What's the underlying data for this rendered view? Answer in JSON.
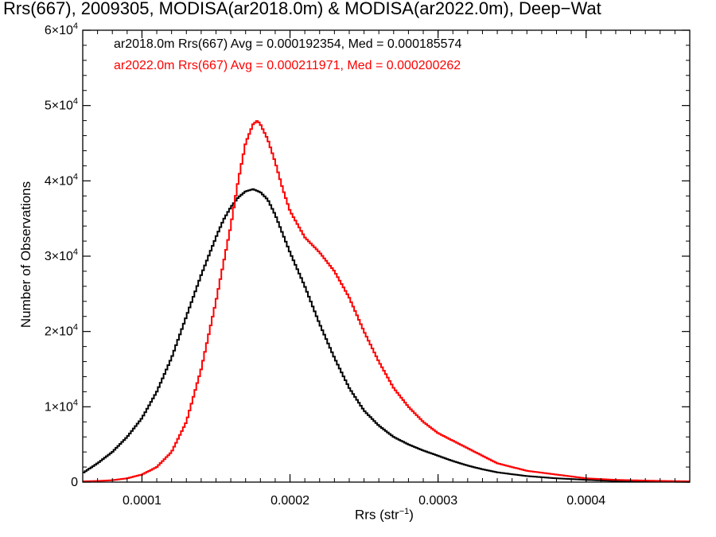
{
  "chart_data": {
    "type": "line",
    "title": "Rrs(667), 2009305, MODISA(ar2018.0m) & MODISA(ar2022.0m), Deep−Wat",
    "xlabel": "Rrs (str",
    "xlabel_sup": "−1",
    "xlabel_suffix": ")",
    "ylabel": "Number of Observations",
    "xlim": [
      6e-05,
      0.00047
    ],
    "ylim": [
      0,
      60000
    ],
    "x_ticks": [
      {
        "value": 0.0001,
        "label": "0.0001"
      },
      {
        "value": 0.0002,
        "label": "0.0002"
      },
      {
        "value": 0.0003,
        "label": "0.0003"
      },
      {
        "value": 0.0004,
        "label": "0.0004"
      }
    ],
    "y_ticks": [
      {
        "value": 0,
        "label": "0",
        "sup": ""
      },
      {
        "value": 10000,
        "label": "1×10",
        "sup": "4"
      },
      {
        "value": 20000,
        "label": "2×10",
        "sup": "4"
      },
      {
        "value": 30000,
        "label": "3×10",
        "sup": "4"
      },
      {
        "value": 40000,
        "label": "4×10",
        "sup": "4"
      },
      {
        "value": 50000,
        "label": "5×10",
        "sup": "4"
      },
      {
        "value": 60000,
        "label": "6×10",
        "sup": "4"
      }
    ],
    "grid": false,
    "legend_placement": "top-left",
    "series": [
      {
        "name": "ar2018.0m Rrs(667) Avg = 0.000192354, Med = 0.000185574",
        "color": "#000000",
        "x": [
          6e-05,
          7e-05,
          8e-05,
          9e-05,
          0.0001,
          0.00011,
          0.00012,
          0.00013,
          0.00014,
          0.00015,
          0.000155,
          0.00016,
          0.000165,
          0.00017,
          0.000175,
          0.00018,
          0.000185,
          0.00019,
          0.0002,
          0.00021,
          0.00022,
          0.00023,
          0.00024,
          0.00025,
          0.00026,
          0.00027,
          0.00028,
          0.00029,
          0.0003,
          0.00031,
          0.00032,
          0.00033,
          0.00034,
          0.00036,
          0.00038,
          0.0004,
          0.00042,
          0.00044,
          0.00047
        ],
        "y": [
          1200,
          2500,
          4000,
          6000,
          8500,
          12000,
          16500,
          22000,
          27500,
          32500,
          34800,
          36500,
          37800,
          38600,
          38900,
          38500,
          37500,
          35500,
          30500,
          26000,
          21000,
          16500,
          12500,
          9500,
          7500,
          6000,
          5000,
          4200,
          3500,
          2800,
          2200,
          1700,
          1300,
          800,
          500,
          300,
          150,
          80,
          30
        ]
      },
      {
        "name": "ar2022.0m Rrs(667) Avg = 0.000211971, Med = 0.000200262",
        "color": "#ff0000",
        "x": [
          6e-05,
          7e-05,
          8e-05,
          9e-05,
          0.0001,
          0.00011,
          0.00012,
          0.00013,
          0.00014,
          0.00015,
          0.00016,
          0.000165,
          0.00017,
          0.000175,
          0.000178,
          0.00018,
          0.000185,
          0.00019,
          0.000195,
          0.0002,
          0.00021,
          0.00022,
          0.00023,
          0.00024,
          0.00025,
          0.00026,
          0.00027,
          0.00028,
          0.00029,
          0.0003,
          0.00031,
          0.00032,
          0.00033,
          0.00034,
          0.00036,
          0.00038,
          0.0004,
          0.00042,
          0.00044,
          0.00047
        ],
        "y": [
          100,
          150,
          250,
          500,
          1000,
          2000,
          4000,
          8000,
          15000,
          24000,
          34000,
          40000,
          45000,
          47500,
          48000,
          47500,
          45500,
          42500,
          39000,
          36000,
          32500,
          30500,
          28000,
          24500,
          20000,
          16000,
          12500,
          10000,
          8000,
          6500,
          5500,
          4500,
          3500,
          2500,
          1500,
          1000,
          500,
          300,
          200,
          100
        ]
      }
    ]
  }
}
